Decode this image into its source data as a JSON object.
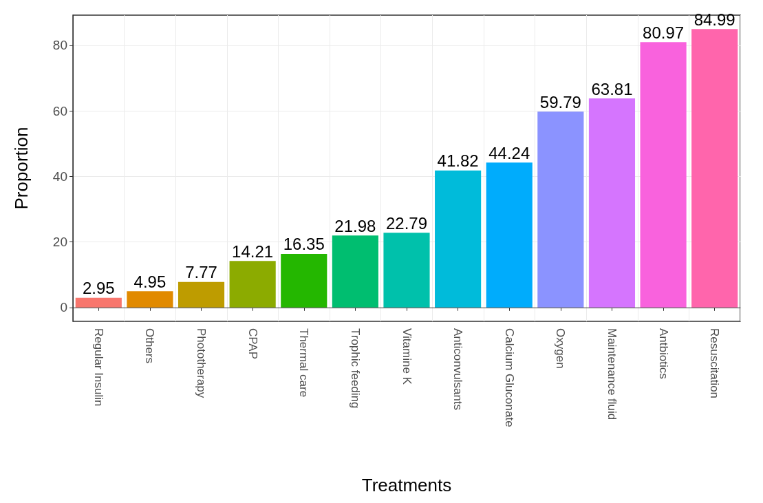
{
  "chart_data": {
    "type": "bar",
    "xlabel": "Treatments",
    "ylabel": "Proportion",
    "categories": [
      "Regular Insulin",
      "Others",
      "Phototherapy",
      "CPAP",
      "Thermal care",
      "Trophic feeding",
      "Vitamine K",
      "Anticonvulsants",
      "Calcium Gluconate",
      "Oxygen",
      "Maintenance fluid",
      "Antbiotics",
      "Resuscitation"
    ],
    "values": [
      2.95,
      4.95,
      7.77,
      14.21,
      16.35,
      21.98,
      22.79,
      41.82,
      44.24,
      59.79,
      63.81,
      80.97,
      84.99
    ],
    "colors": [
      "#f8766d",
      "#e18a00",
      "#be9c00",
      "#8cab00",
      "#24b700",
      "#00be70",
      "#00c1ab",
      "#00bbda",
      "#00acfc",
      "#8b93ff",
      "#d575fe",
      "#f962dd",
      "#ff65ac"
    ],
    "ylim": [
      -4.25,
      89.24
    ],
    "yticks": [
      0,
      20,
      40,
      60,
      80
    ],
    "grid": true,
    "data_labels": true
  }
}
